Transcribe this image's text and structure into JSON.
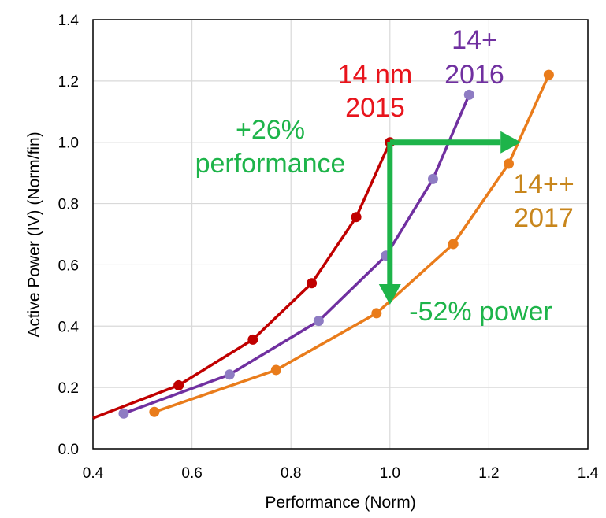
{
  "chart_data": {
    "type": "line",
    "xlabel": "Performance (Norm)",
    "ylabel": "Active Power (IV) (Norm/fin)",
    "xlim": [
      0.4,
      1.4
    ],
    "ylim": [
      0.0,
      1.4
    ],
    "xticks": [
      "0.4",
      "0.6",
      "0.8",
      "1.0",
      "1.2",
      "1.4"
    ],
    "yticks": [
      "0.0",
      "0.2",
      "0.4",
      "0.6",
      "0.8",
      "1.0",
      "1.2",
      "1.4"
    ],
    "grid": true,
    "series": [
      {
        "color": "#C00000",
        "points": [
          [
            0.4,
            0.1
          ],
          [
            0.573,
            0.207
          ],
          [
            0.723,
            0.356
          ],
          [
            0.842,
            0.54
          ],
          [
            0.932,
            0.756
          ],
          [
            1.0,
            1.0
          ]
        ],
        "markers": [
          [
            0.573,
            0.207
          ],
          [
            0.723,
            0.356
          ],
          [
            0.842,
            0.54
          ],
          [
            0.932,
            0.756
          ],
          [
            1.0,
            1.0
          ]
        ]
      },
      {
        "color": "#7030A0",
        "marker_color": "#8E7CC3",
        "points": [
          [
            0.462,
            0.115
          ],
          [
            0.676,
            0.242
          ],
          [
            0.856,
            0.417
          ],
          [
            0.992,
            0.63
          ],
          [
            1.087,
            0.88
          ],
          [
            1.16,
            1.155
          ]
        ],
        "markers": [
          [
            0.462,
            0.115
          ],
          [
            0.676,
            0.242
          ],
          [
            0.856,
            0.417
          ],
          [
            0.992,
            0.63
          ],
          [
            1.087,
            0.88
          ],
          [
            1.16,
            1.155
          ]
        ]
      },
      {
        "color": "#E97C1B",
        "points": [
          [
            0.524,
            0.12
          ],
          [
            0.77,
            0.257
          ],
          [
            0.973,
            0.442
          ],
          [
            1.128,
            0.668
          ],
          [
            1.24,
            0.93
          ],
          [
            1.321,
            1.22
          ]
        ],
        "markers": [
          [
            0.524,
            0.12
          ],
          [
            0.77,
            0.257
          ],
          [
            0.973,
            0.442
          ],
          [
            1.128,
            0.668
          ],
          [
            1.24,
            0.93
          ],
          [
            1.321,
            1.22
          ]
        ]
      }
    ],
    "arrows": [
      {
        "color": "#1EB44A",
        "from": [
          1.0,
          1.0
        ],
        "to": [
          1.265,
          1.0
        ]
      },
      {
        "color": "#1EB44A",
        "from": [
          1.0,
          1.0
        ],
        "to": [
          1.0,
          0.47
        ]
      }
    ],
    "annotations": [
      {
        "id": "anno-14nm-line1",
        "text": "14 nm",
        "color": "#E8141C"
      },
      {
        "id": "anno-14nm-line2",
        "text": "2015",
        "color": "#E8141C"
      },
      {
        "id": "anno-14plus-line1",
        "text": "14+",
        "color": "#7030A0"
      },
      {
        "id": "anno-14plus-line2",
        "text": "2016",
        "color": "#7030A0"
      },
      {
        "id": "anno-14pp-line1",
        "text": "14++",
        "color": "#C8861C"
      },
      {
        "id": "anno-14pp-line2",
        "text": "2017",
        "color": "#C8861C"
      },
      {
        "id": "anno-perf-line1",
        "text": "+26%",
        "color": "#1EB44A"
      },
      {
        "id": "anno-perf-line2",
        "text": "performance",
        "color": "#1EB44A"
      },
      {
        "id": "anno-power",
        "text": "-52% power",
        "color": "#1EB44A"
      }
    ]
  }
}
